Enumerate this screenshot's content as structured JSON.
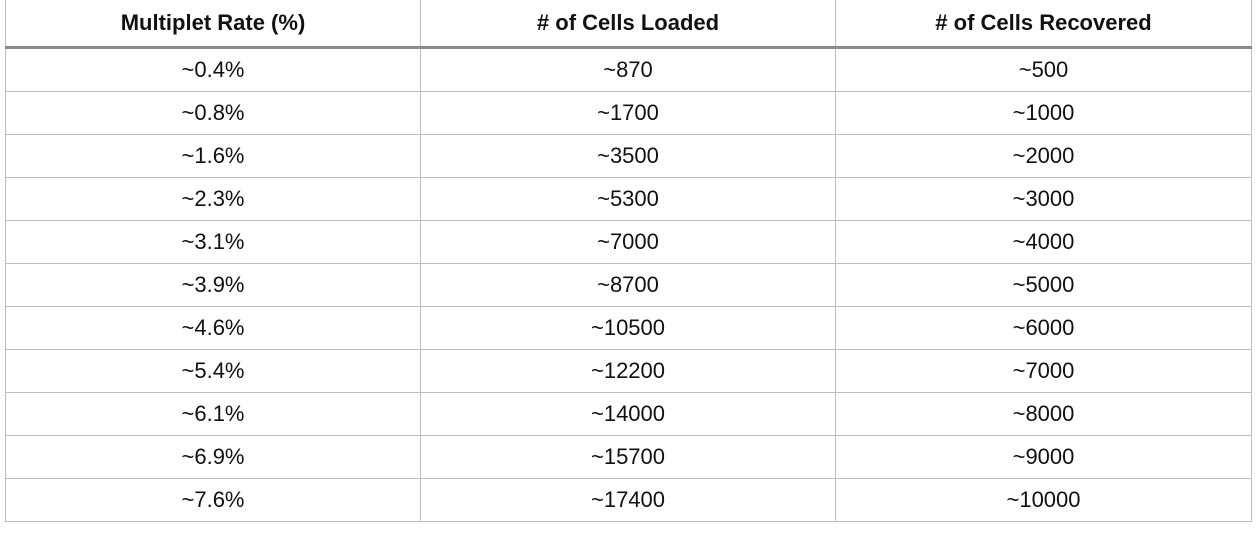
{
  "table": {
    "headers": [
      "Multiplet Rate (%)",
      "# of Cells Loaded",
      "# of Cells Recovered"
    ],
    "rows": [
      [
        "~0.4%",
        "~870",
        "~500"
      ],
      [
        "~0.8%",
        "~1700",
        "~1000"
      ],
      [
        "~1.6%",
        "~3500",
        "~2000"
      ],
      [
        "~2.3%",
        "~5300",
        "~3000"
      ],
      [
        "~3.1%",
        "~7000",
        "~4000"
      ],
      [
        "~3.9%",
        "~8700",
        "~5000"
      ],
      [
        "~4.6%",
        "~10500",
        "~6000"
      ],
      [
        "~5.4%",
        "~12200",
        "~7000"
      ],
      [
        "~6.1%",
        "~14000",
        "~8000"
      ],
      [
        "~6.9%",
        "~15700",
        "~9000"
      ],
      [
        "~7.6%",
        "~17400",
        "~10000"
      ]
    ]
  },
  "colors": {
    "grid": "#bdbdbd",
    "header_rule": "#8a8a8a",
    "text": "#111111"
  }
}
